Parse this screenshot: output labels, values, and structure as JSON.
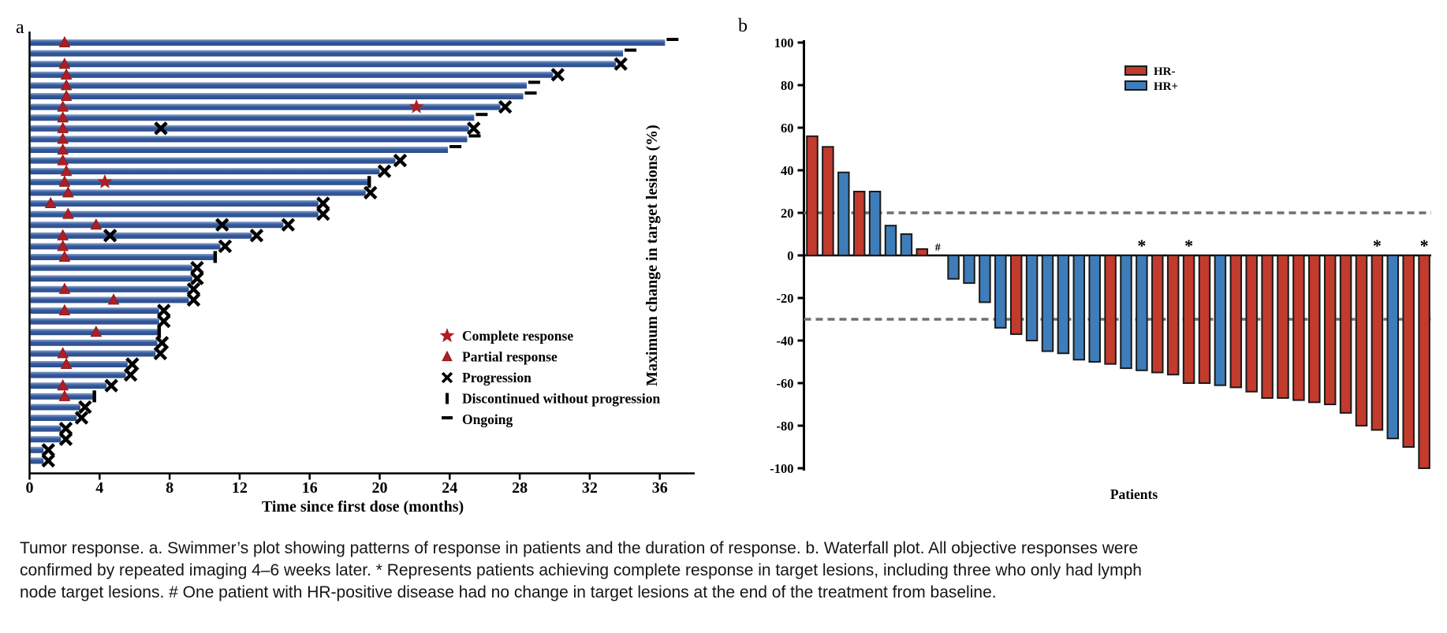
{
  "colors": {
    "swimmer_bar": "#34599B",
    "swimmer_bar_light": "#8AA2CC",
    "swimmer_bar_dark": "#2C4E8B",
    "marker_red": "#B01E24",
    "hr_neg": "#C23B2D",
    "hr_pos": "#3E7DBA",
    "bar_border": "#1A1A1A",
    "ref_line": "#6F6F6F",
    "axis": "#000000"
  },
  "caption": {
    "lines": [
      "Tumor response. a. Swimmer’s plot showing patterns of response in patients and the duration of response. b. Waterfall plot. All objective responses were",
      "confirmed by repeated imaging 4–6 weeks later. * Represents patients achieving complete response in target lesions, including three who only had lymph",
      "node target lesions. # One patient with HR-positive disease had no change in target lesions at the end of the treatment from baseline."
    ]
  },
  "chart_data": [
    {
      "type": "bar",
      "name": "swimmer-plot",
      "panel_label": "a",
      "orientation": "horizontal",
      "xlabel": "Time since first dose (months)",
      "xticks": [
        0,
        4,
        8,
        12,
        16,
        20,
        24,
        28,
        32,
        36
      ],
      "xlim": [
        0,
        38
      ],
      "legend_position": "lower-right-inside",
      "legend": [
        {
          "symbol": "star",
          "label": "Complete response"
        },
        {
          "symbol": "triangle",
          "label": "Partial response"
        },
        {
          "symbol": "x",
          "label": "Progression"
        },
        {
          "symbol": "discontinued",
          "label": "Discontinued without progression"
        },
        {
          "symbol": "ongoing",
          "label": "Ongoing"
        }
      ],
      "patients": [
        {
          "duration": 36.3,
          "end": "ongoing",
          "markers": [
            {
              "type": "triangle",
              "x": 2.0
            }
          ]
        },
        {
          "duration": 33.9,
          "end": "ongoing",
          "markers": []
        },
        {
          "duration": 33.5,
          "end": "progression",
          "markers": [
            {
              "type": "triangle",
              "x": 2.0
            }
          ]
        },
        {
          "duration": 29.9,
          "end": "progression",
          "markers": [
            {
              "type": "triangle",
              "x": 2.1
            }
          ]
        },
        {
          "duration": 28.4,
          "end": "ongoing",
          "markers": [
            {
              "type": "triangle",
              "x": 2.1
            }
          ]
        },
        {
          "duration": 28.2,
          "end": "ongoing",
          "markers": [
            {
              "type": "triangle",
              "x": 2.1
            }
          ]
        },
        {
          "duration": 26.9,
          "end": "progression",
          "markers": [
            {
              "type": "triangle",
              "x": 1.9
            },
            {
              "type": "star",
              "x": 22.1
            }
          ]
        },
        {
          "duration": 25.4,
          "end": "ongoing",
          "markers": [
            {
              "type": "triangle",
              "x": 1.9
            }
          ]
        },
        {
          "duration": 25.1,
          "end": "progression",
          "markers": [
            {
              "type": "triangle",
              "x": 1.9
            },
            {
              "type": "x",
              "x": 7.5
            }
          ]
        },
        {
          "duration": 25.0,
          "end": "ongoing",
          "markers": [
            {
              "type": "triangle",
              "x": 1.9
            }
          ]
        },
        {
          "duration": 23.9,
          "end": "ongoing",
          "markers": [
            {
              "type": "triangle",
              "x": 1.9
            }
          ]
        },
        {
          "duration": 20.9,
          "end": "progression",
          "markers": [
            {
              "type": "triangle",
              "x": 1.9
            }
          ]
        },
        {
          "duration": 20.0,
          "end": "progression",
          "markers": [
            {
              "type": "triangle",
              "x": 2.1
            }
          ]
        },
        {
          "duration": 19.3,
          "end": "discontinued",
          "markers": [
            {
              "type": "triangle",
              "x": 2.0
            },
            {
              "type": "star",
              "x": 4.3
            }
          ]
        },
        {
          "duration": 19.2,
          "end": "progression",
          "markers": [
            {
              "type": "triangle",
              "x": 2.2
            }
          ]
        },
        {
          "duration": 16.5,
          "end": "progression",
          "markers": [
            {
              "type": "triangle",
              "x": 1.2
            }
          ]
        },
        {
          "duration": 16.5,
          "end": "progression",
          "markers": [
            {
              "type": "triangle",
              "x": 2.2
            }
          ]
        },
        {
          "duration": 14.5,
          "end": "progression",
          "markers": [
            {
              "type": "triangle",
              "x": 3.8
            },
            {
              "type": "x",
              "x": 11.0
            }
          ]
        },
        {
          "duration": 12.7,
          "end": "progression",
          "markers": [
            {
              "type": "triangle",
              "x": 1.9
            },
            {
              "type": "x",
              "x": 4.6
            }
          ]
        },
        {
          "duration": 10.9,
          "end": "progression",
          "markers": [
            {
              "type": "triangle",
              "x": 1.9
            }
          ]
        },
        {
          "duration": 10.5,
          "end": "discontinued",
          "markers": [
            {
              "type": "triangle",
              "x": 2.0
            }
          ]
        },
        {
          "duration": 9.3,
          "end": "progression",
          "markers": []
        },
        {
          "duration": 9.3,
          "end": "progression",
          "markers": []
        },
        {
          "duration": 9.1,
          "end": "progression",
          "markers": [
            {
              "type": "triangle",
              "x": 2.0
            }
          ]
        },
        {
          "duration": 9.1,
          "end": "progression",
          "markers": [
            {
              "type": "triangle",
              "x": 4.8
            }
          ]
        },
        {
          "duration": 7.4,
          "end": "progression",
          "markers": [
            {
              "type": "triangle",
              "x": 2.0
            }
          ]
        },
        {
          "duration": 7.4,
          "end": "progression",
          "markers": []
        },
        {
          "duration": 7.3,
          "end": "discontinued",
          "markers": [
            {
              "type": "triangle",
              "x": 3.8
            }
          ]
        },
        {
          "duration": 7.3,
          "end": "progression",
          "markers": []
        },
        {
          "duration": 7.2,
          "end": "progression",
          "markers": [
            {
              "type": "triangle",
              "x": 1.9
            }
          ]
        },
        {
          "duration": 5.6,
          "end": "progression",
          "markers": [
            {
              "type": "triangle",
              "x": 2.1
            }
          ]
        },
        {
          "duration": 5.5,
          "end": "progression",
          "markers": []
        },
        {
          "duration": 4.4,
          "end": "progression",
          "markers": [
            {
              "type": "triangle",
              "x": 1.9
            }
          ]
        },
        {
          "duration": 3.6,
          "end": "discontinued",
          "markers": [
            {
              "type": "triangle",
              "x": 2.0
            }
          ]
        },
        {
          "duration": 2.9,
          "end": "progression",
          "markers": []
        },
        {
          "duration": 2.7,
          "end": "progression",
          "markers": []
        },
        {
          "duration": 1.8,
          "end": "progression",
          "markers": []
        },
        {
          "duration": 1.8,
          "end": "progression",
          "markers": []
        },
        {
          "duration": 0.8,
          "end": "progression",
          "markers": []
        },
        {
          "duration": 0.8,
          "end": "progression",
          "markers": []
        }
      ]
    },
    {
      "type": "bar",
      "name": "waterfall-plot",
      "panel_label": "b",
      "ylabel": "Maximum change in target lesions (%)",
      "xlabel": "Patients",
      "ylim": [
        -100,
        100
      ],
      "yticks": [
        100,
        80,
        60,
        40,
        20,
        0,
        -20,
        -40,
        -60,
        -80,
        -100
      ],
      "reference_lines": [
        20,
        -30
      ],
      "legend_position": "upper-right-inside",
      "legend": [
        {
          "label": "HR-",
          "color_key": "hr_neg"
        },
        {
          "label": "HR+",
          "color_key": "hr_pos"
        }
      ],
      "patients": [
        {
          "value": 56,
          "group": "HR-"
        },
        {
          "value": 51,
          "group": "HR-"
        },
        {
          "value": 39,
          "group": "HR+"
        },
        {
          "value": 30,
          "group": "HR-"
        },
        {
          "value": 30,
          "group": "HR+"
        },
        {
          "value": 14,
          "group": "HR+"
        },
        {
          "value": 10,
          "group": "HR+"
        },
        {
          "value": 3,
          "group": "HR-"
        },
        {
          "value": 0,
          "group": "HR+",
          "annotation": "#"
        },
        {
          "value": -11,
          "group": "HR+"
        },
        {
          "value": -13,
          "group": "HR+"
        },
        {
          "value": -22,
          "group": "HR+"
        },
        {
          "value": -34,
          "group": "HR+"
        },
        {
          "value": -37,
          "group": "HR-"
        },
        {
          "value": -40,
          "group": "HR+"
        },
        {
          "value": -45,
          "group": "HR+"
        },
        {
          "value": -46,
          "group": "HR+"
        },
        {
          "value": -49,
          "group": "HR+"
        },
        {
          "value": -50,
          "group": "HR+"
        },
        {
          "value": -51,
          "group": "HR-"
        },
        {
          "value": -53,
          "group": "HR+"
        },
        {
          "value": -54,
          "group": "HR+",
          "annotation": "*"
        },
        {
          "value": -55,
          "group": "HR-"
        },
        {
          "value": -56,
          "group": "HR-"
        },
        {
          "value": -60,
          "group": "HR-",
          "annotation": "*"
        },
        {
          "value": -60,
          "group": "HR-"
        },
        {
          "value": -61,
          "group": "HR+"
        },
        {
          "value": -62,
          "group": "HR-"
        },
        {
          "value": -64,
          "group": "HR-"
        },
        {
          "value": -67,
          "group": "HR-"
        },
        {
          "value": -67,
          "group": "HR-"
        },
        {
          "value": -68,
          "group": "HR-"
        },
        {
          "value": -69,
          "group": "HR-"
        },
        {
          "value": -70,
          "group": "HR-"
        },
        {
          "value": -74,
          "group": "HR-"
        },
        {
          "value": -80,
          "group": "HR-"
        },
        {
          "value": -82,
          "group": "HR-",
          "annotation": "*"
        },
        {
          "value": -86,
          "group": "HR+"
        },
        {
          "value": -90,
          "group": "HR-"
        },
        {
          "value": -100,
          "group": "HR-",
          "annotation": "*"
        }
      ]
    }
  ]
}
